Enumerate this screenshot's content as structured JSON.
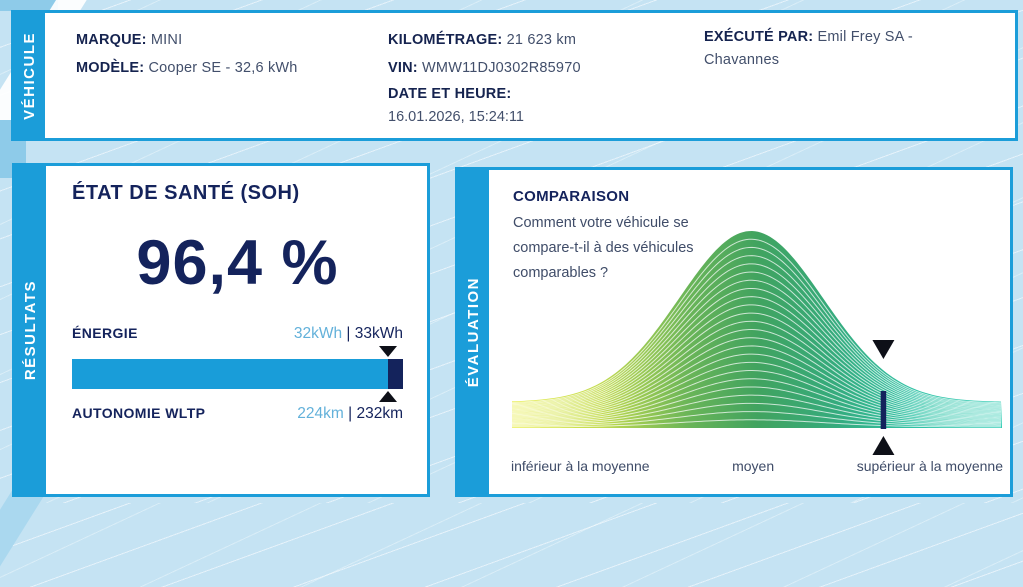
{
  "theme": {
    "accent_blue": "#1b9dd9",
    "navy": "#14235c",
    "value_light_blue": "#63b1da",
    "background": "#c5e3f3",
    "marker_black": "#0e1018"
  },
  "vehicle_card": {
    "side_label": "VÉHICULE",
    "columns": [
      {
        "fields": [
          {
            "label": "MARQUE:",
            "value": "MINI"
          },
          {
            "label": "MODÈLE:",
            "value": "Cooper SE - 32,6 kWh"
          }
        ]
      },
      {
        "fields": [
          {
            "label": "KILOMÉTRAGE:",
            "value": "21 623 km"
          },
          {
            "label": "VIN:",
            "value": "WMW11DJ0302R85970"
          }
        ],
        "datetime": {
          "label": "DATE ET HEURE:",
          "value": "16.01.2026, 15:24:11"
        }
      },
      {
        "fields": [
          {
            "label": "EXÉCUTÉ PAR:",
            "value": "Emil Frey SA - Chavannes"
          }
        ]
      }
    ]
  },
  "results_card": {
    "side_label": "RÉSULTATS",
    "soh_title": "ÉTAT DE SANTÉ (SOH)",
    "soh_value": "96,4 %",
    "energy": {
      "label": "ÉNERGIE",
      "current": "32kWh",
      "separator": " | ",
      "total": "33kWh",
      "percent": 95.6
    },
    "range": {
      "label": "AUTONOMIE WLTP",
      "current": "224km",
      "separator": " | ",
      "total": "232km"
    }
  },
  "evaluation_card": {
    "side_label": "ÉVALUATION",
    "title": "COMPARAISON",
    "subtitle": "Comment votre véhicule se compare-t-il à des véhicules comparables ?",
    "chart_data": {
      "type": "area",
      "distribution": "normal",
      "x_labels": [
        "inférieur à la moyenne",
        "moyen",
        "supérieur à la moyenne"
      ],
      "peak_fraction": 0.488,
      "marker_fraction": 0.758,
      "ridge_lines": 24,
      "gradient_colors": [
        "#e9ee4b",
        "#41a35f",
        "#2ecbb3"
      ],
      "marker_color": "#14235c",
      "legend": "off",
      "grid": "off"
    }
  }
}
